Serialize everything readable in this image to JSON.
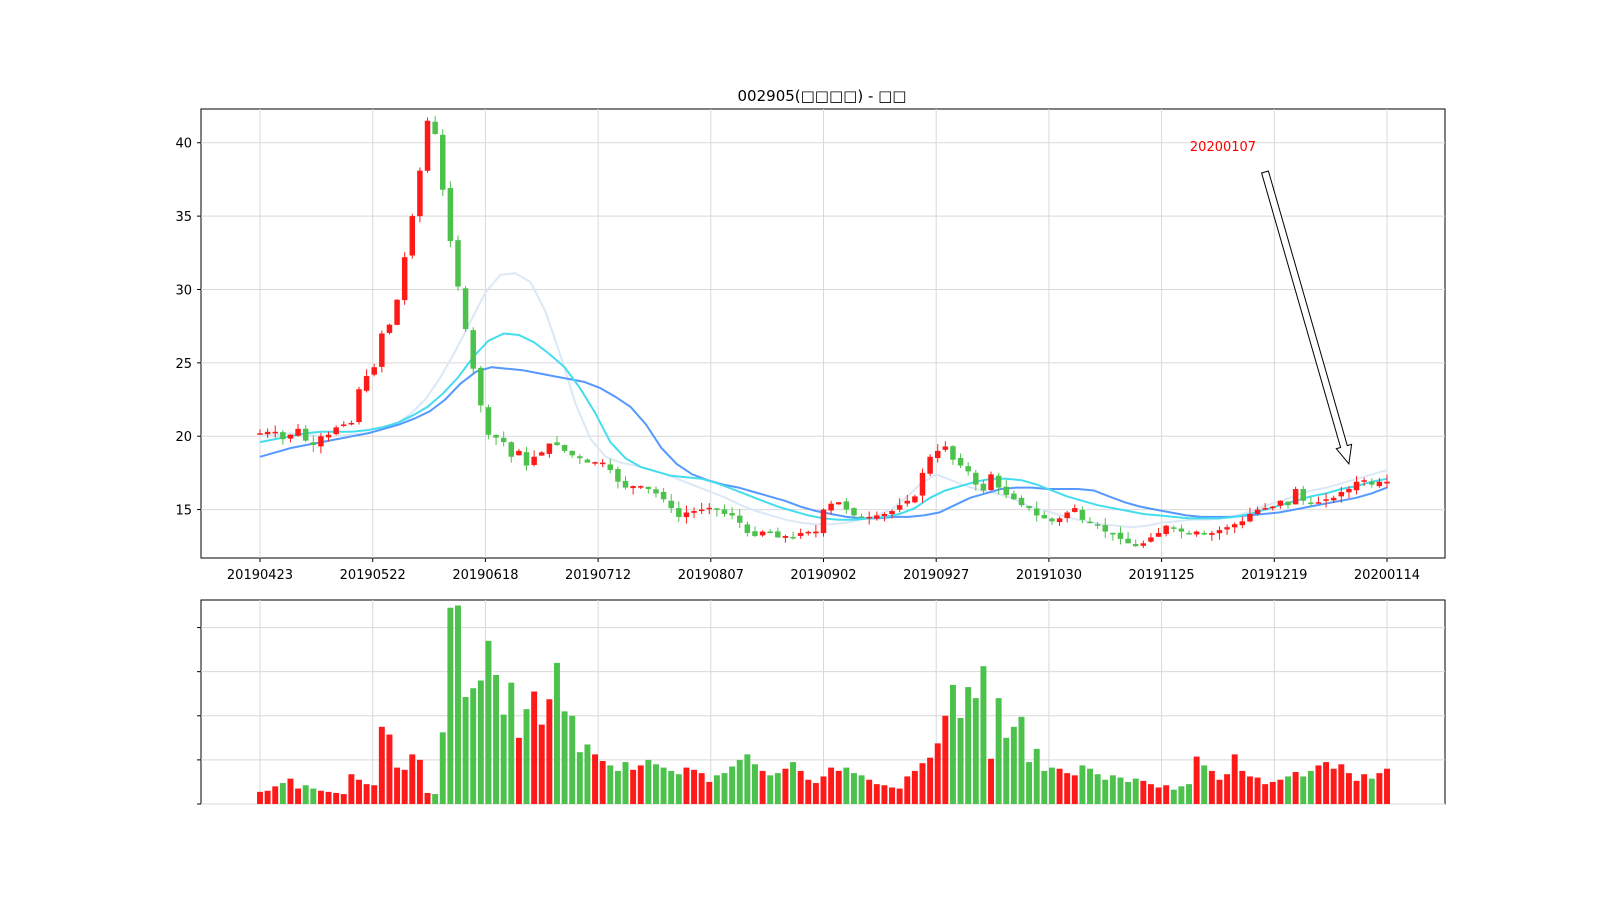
{
  "chart_data": [
    {
      "type": "candlestick",
      "title": "002905(□□□□) - □□",
      "ylim": [
        11.7,
        42.3
      ],
      "yticks": [
        15,
        20,
        25,
        30,
        35,
        40
      ],
      "grid": true,
      "xtick_labels": [
        "20190423",
        "20190522",
        "20190618",
        "20190712",
        "20190807",
        "20190902",
        "20190927",
        "20191030",
        "20191125",
        "20191219",
        "20200114"
      ],
      "colors": {
        "up": "#ff1a1a",
        "down": "#4cc14c",
        "ma_short": "#dbe8f5",
        "ma_mid": "#44ddee",
        "ma_long": "#5599ff",
        "annotation": "#ff0000"
      },
      "annotation": {
        "text": "20200107",
        "target_date": "20200107",
        "target_price": 18.8
      },
      "prices": {
        "start": 20.2,
        "steps": [
          0.1,
          0.0,
          -0.5,
          0.3,
          0.4,
          -0.8,
          -0.3,
          0.6,
          0.1,
          0.5,
          0.2,
          0.1,
          2.3,
          0.9,
          0.6,
          2.3,
          0.6,
          1.7,
          2.9,
          2.8,
          3.1,
          3.4,
          -0.9,
          -3.8,
          -3.5,
          -3.1,
          -2.9,
          -2.7,
          -2.5,
          -2.0,
          -0.2,
          -0.3,
          -1.0,
          0.4,
          -1.0,
          0.6,
          0.3,
          0.6,
          -0.1,
          -0.4,
          -0.3,
          -0.2,
          -0.3,
          0.0,
          0.0,
          -0.5,
          -0.8,
          -0.4,
          0.1,
          0.0,
          -0.2,
          -0.3,
          -0.4,
          -0.6,
          -0.6,
          0.3,
          0.1,
          0.1,
          0.1,
          -0.1,
          -0.3,
          -0.1,
          -0.5,
          -0.7,
          -0.2,
          0.3,
          -0.1,
          -0.3,
          0.1,
          -0.1,
          0.3,
          0.0,
          0.1,
          1.5,
          0.4,
          0.1,
          -0.5,
          -0.4,
          -0.1,
          0.0,
          0.1,
          0.1,
          0.2,
          0.4,
          0.3,
          0.3,
          1.6,
          1.1,
          0.4,
          0.3,
          -0.9,
          -0.4,
          -0.4,
          -0.9,
          -0.4,
          1.1,
          -0.9,
          -0.5,
          -0.3,
          -0.4,
          -0.2,
          -0.5,
          -0.2,
          -0.2,
          0.2,
          0.4,
          0.3,
          -0.8,
          -0.2,
          -0.2,
          -0.4,
          -0.2,
          -0.3,
          -0.3,
          -0.2,
          0.2,
          0.4,
          0.3,
          0.5,
          -0.2,
          -0.2,
          -0.1,
          0.1,
          -0.2,
          0.1,
          0.2,
          0.2,
          0.2,
          0.2,
          0.5,
          0.3,
          0.1,
          0.1,
          0.4,
          -0.3,
          1.1,
          -0.8,
          -0.2,
          0.1,
          0.2,
          0.1,
          0.4,
          0.2,
          0.5,
          0.1,
          -0.3,
          0.2,
          0.0
        ],
        "first_date": "20190423",
        "last_date": "20200114"
      },
      "moving_averages": {
        "ma_short": [
          20.0,
          20.1,
          20.2,
          20.1,
          20.0,
          20.0,
          20.1,
          20.2,
          20.4,
          20.8,
          21.5,
          22.5,
          24.0,
          25.8,
          27.8,
          29.8,
          31.0,
          31.1,
          30.5,
          28.5,
          25.5,
          22.2,
          19.8,
          18.6,
          18.2,
          18.0,
          17.7,
          17.4,
          17.0,
          16.6,
          16.2,
          15.8,
          15.3,
          14.9,
          14.6,
          14.3,
          14.1,
          14.0,
          14.0,
          14.1,
          14.3,
          14.6,
          15.0,
          15.8,
          16.8,
          17.4,
          17.0,
          16.6,
          16.3,
          16.1,
          15.8,
          15.3,
          15.0,
          14.7,
          14.4,
          14.2,
          14.0,
          13.9,
          13.8,
          13.9,
          14.1,
          14.2,
          14.3,
          14.3,
          14.4,
          14.6,
          14.9,
          15.3,
          15.6,
          16.0,
          16.3,
          16.5,
          16.8,
          17.1,
          17.4,
          17.7
        ],
        "ma_mid": [
          19.6,
          19.8,
          20.0,
          20.2,
          20.3,
          20.3,
          20.3,
          20.4,
          20.6,
          20.9,
          21.4,
          22.0,
          22.9,
          24.0,
          25.4,
          26.5,
          27.0,
          26.9,
          26.4,
          25.6,
          24.7,
          23.3,
          21.6,
          19.6,
          18.5,
          17.9,
          17.6,
          17.3,
          17.2,
          17.1,
          16.8,
          16.4,
          16.0,
          15.6,
          15.2,
          14.9,
          14.6,
          14.4,
          14.3,
          14.3,
          14.4,
          14.5,
          14.7,
          15.1,
          15.8,
          16.3,
          16.6,
          16.9,
          17.1,
          17.1,
          17.0,
          16.7,
          16.3,
          15.9,
          15.6,
          15.3,
          15.1,
          14.9,
          14.7,
          14.6,
          14.5,
          14.4,
          14.4,
          14.4,
          14.5,
          14.7,
          15.0,
          15.3,
          15.6,
          15.9,
          16.1,
          16.4,
          16.6,
          16.9,
          17.1
        ],
        "ma_long": [
          18.6,
          18.9,
          19.2,
          19.4,
          19.6,
          19.8,
          20.0,
          20.2,
          20.5,
          20.8,
          21.2,
          21.7,
          22.5,
          23.6,
          24.4,
          24.7,
          24.6,
          24.5,
          24.3,
          24.1,
          23.9,
          23.7,
          23.3,
          22.7,
          22.0,
          20.8,
          19.2,
          18.1,
          17.4,
          17.0,
          16.7,
          16.5,
          16.2,
          15.9,
          15.6,
          15.2,
          14.9,
          14.7,
          14.5,
          14.4,
          14.4,
          14.5,
          14.5,
          14.6,
          14.8,
          15.3,
          15.8,
          16.1,
          16.4,
          16.5,
          16.5,
          16.4,
          16.4,
          16.4,
          16.3,
          15.9,
          15.5,
          15.2,
          15.0,
          14.8,
          14.6,
          14.5,
          14.5,
          14.5,
          14.6,
          14.7,
          14.8,
          15.0,
          15.2,
          15.4,
          15.6,
          15.8,
          16.1,
          16.5
        ]
      }
    },
    {
      "type": "bar",
      "title": "",
      "y_tick_labels_shown": false,
      "grid": true,
      "volumes": [
        11,
        12,
        16,
        19,
        23,
        14,
        17,
        14,
        12,
        11,
        10,
        9,
        27,
        22,
        18,
        17,
        70,
        63,
        33,
        31,
        45,
        40,
        10,
        9,
        65,
        178,
        180,
        97,
        105,
        112,
        148,
        117,
        81,
        110,
        60,
        86,
        102,
        72,
        95,
        128,
        84,
        80,
        47,
        54,
        45,
        39,
        35,
        30,
        38,
        31,
        35,
        40,
        36,
        33,
        30,
        27,
        33,
        31,
        28,
        20,
        26,
        28,
        34,
        40,
        45,
        36,
        30,
        26,
        28,
        32,
        38,
        30,
        22,
        19,
        25,
        33,
        30,
        33,
        28,
        26,
        22,
        18,
        17,
        15,
        14,
        25,
        30,
        37,
        42,
        55,
        80,
        108,
        78,
        106,
        96,
        125,
        41,
        96,
        60,
        70,
        79,
        38,
        50,
        30,
        33,
        32,
        28,
        26,
        35,
        32,
        27,
        22,
        26,
        24,
        20,
        23,
        21,
        18,
        15,
        17,
        13,
        16,
        18,
        43,
        35,
        30,
        22,
        27,
        45,
        30,
        25,
        24,
        18,
        20,
        22,
        25,
        29,
        25,
        30,
        35,
        38,
        32,
        36,
        28,
        21,
        27,
        23,
        28,
        32,
        26,
        29,
        36,
        46,
        40,
        35,
        31,
        27,
        33,
        30,
        35,
        24,
        28
      ]
    }
  ]
}
